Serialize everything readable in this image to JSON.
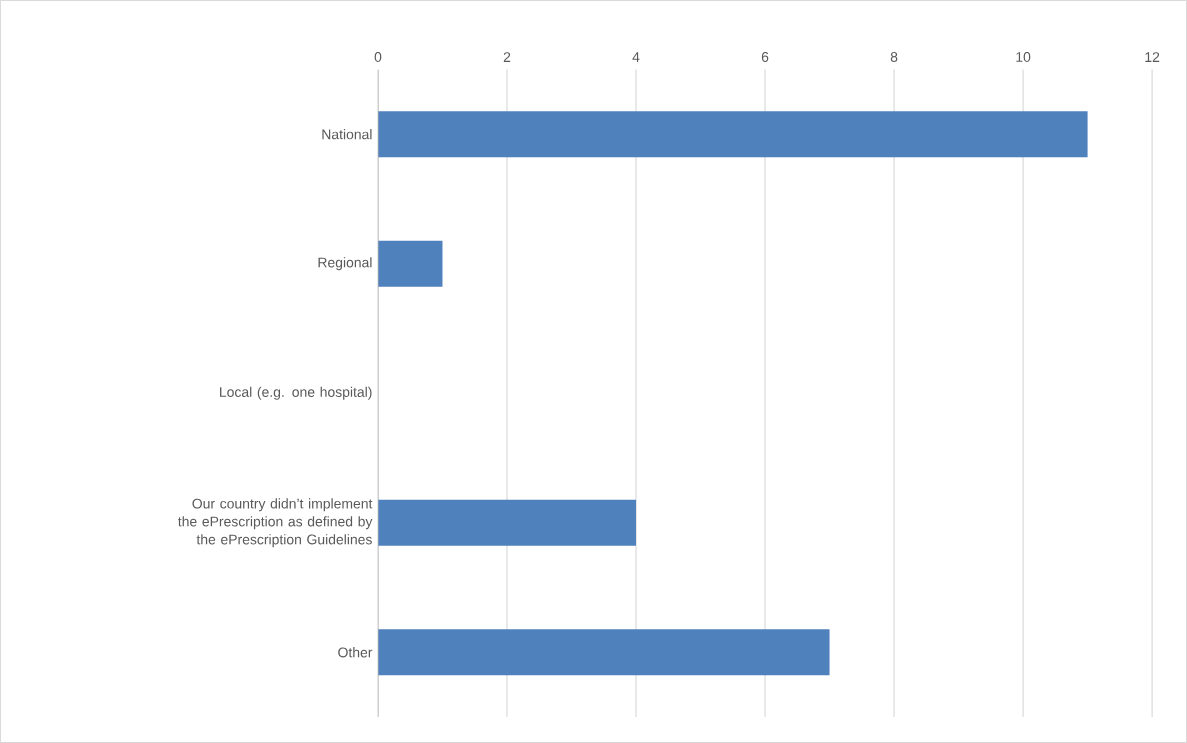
{
  "chart_data": {
    "type": "bar",
    "orientation": "horizontal",
    "categories": [
      "National",
      "Regional",
      "Local (e.g. one hospital)",
      "Our country didn’t implement the ePrescription as defined by the ePrescription Guidelines",
      "Other"
    ],
    "values": [
      11,
      1,
      0,
      4,
      7
    ],
    "color": "#4f81bd",
    "xlim": [
      0,
      12
    ],
    "xticks": [
      0,
      2,
      4,
      6,
      8,
      10,
      12
    ],
    "grid": "x"
  }
}
